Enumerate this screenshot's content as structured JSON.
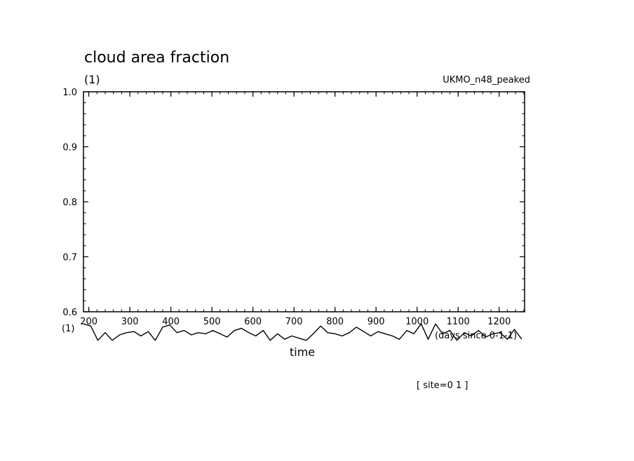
{
  "chart_data": {
    "type": "line",
    "title": "cloud area fraction",
    "y_unit": "(1)",
    "model": "UKMO_n48_peaked",
    "xlabel": "time",
    "x_unit_left": "(1)",
    "x_unit_right": "(days since 0-1-1)",
    "site": "[ site=0 1 ]",
    "xlim": [
      187,
      1262
    ],
    "ylim": [
      0.6,
      1.0
    ],
    "x_ticks": [
      200,
      300,
      400,
      500,
      600,
      700,
      800,
      900,
      1000,
      1100,
      1200
    ],
    "y_ticks": [
      0.6,
      0.7,
      0.8,
      0.9,
      1.0
    ],
    "x_tick_labels": [
      "200",
      "300",
      "400",
      "500",
      "600",
      "700",
      "800",
      "900",
      "1000",
      "1100",
      "1200"
    ],
    "y_tick_labels": [
      "0.6",
      "0.7",
      "0.8",
      "0.9",
      "1.0"
    ],
    "grid": false,
    "series": [
      {
        "x": [
          187,
          205,
          222,
          240,
          257,
          275,
          292,
          310,
          327,
          345,
          362,
          380,
          397,
          415,
          432,
          450,
          467,
          485,
          502,
          520,
          537,
          555,
          572,
          590,
          607,
          625,
          642,
          660,
          677,
          695,
          712,
          730,
          747,
          765,
          782,
          800,
          817,
          835,
          852,
          870,
          887,
          905,
          922,
          940,
          957,
          975,
          992,
          1010,
          1027,
          1045,
          1062,
          1080,
          1097,
          1115,
          1132,
          1150,
          1167,
          1185,
          1202,
          1220,
          1237,
          1255
        ],
        "y": [
          0.578,
          0.574,
          0.548,
          0.562,
          0.548,
          0.558,
          0.562,
          0.564,
          0.556,
          0.564,
          0.548,
          0.572,
          0.576,
          0.562,
          0.566,
          0.558,
          0.562,
          0.56,
          0.566,
          0.56,
          0.554,
          0.566,
          0.57,
          0.562,
          0.556,
          0.566,
          0.548,
          0.56,
          0.55,
          0.556,
          0.552,
          0.548,
          0.56,
          0.574,
          0.562,
          0.56,
          0.556,
          0.562,
          0.572,
          0.564,
          0.556,
          0.564,
          0.56,
          0.556,
          0.55,
          0.566,
          0.56,
          0.578,
          0.55,
          0.578,
          0.56,
          0.566,
          0.548,
          0.562,
          0.556,
          0.566,
          0.554,
          0.56,
          0.562,
          0.55,
          0.568,
          0.55
        ]
      }
    ]
  }
}
